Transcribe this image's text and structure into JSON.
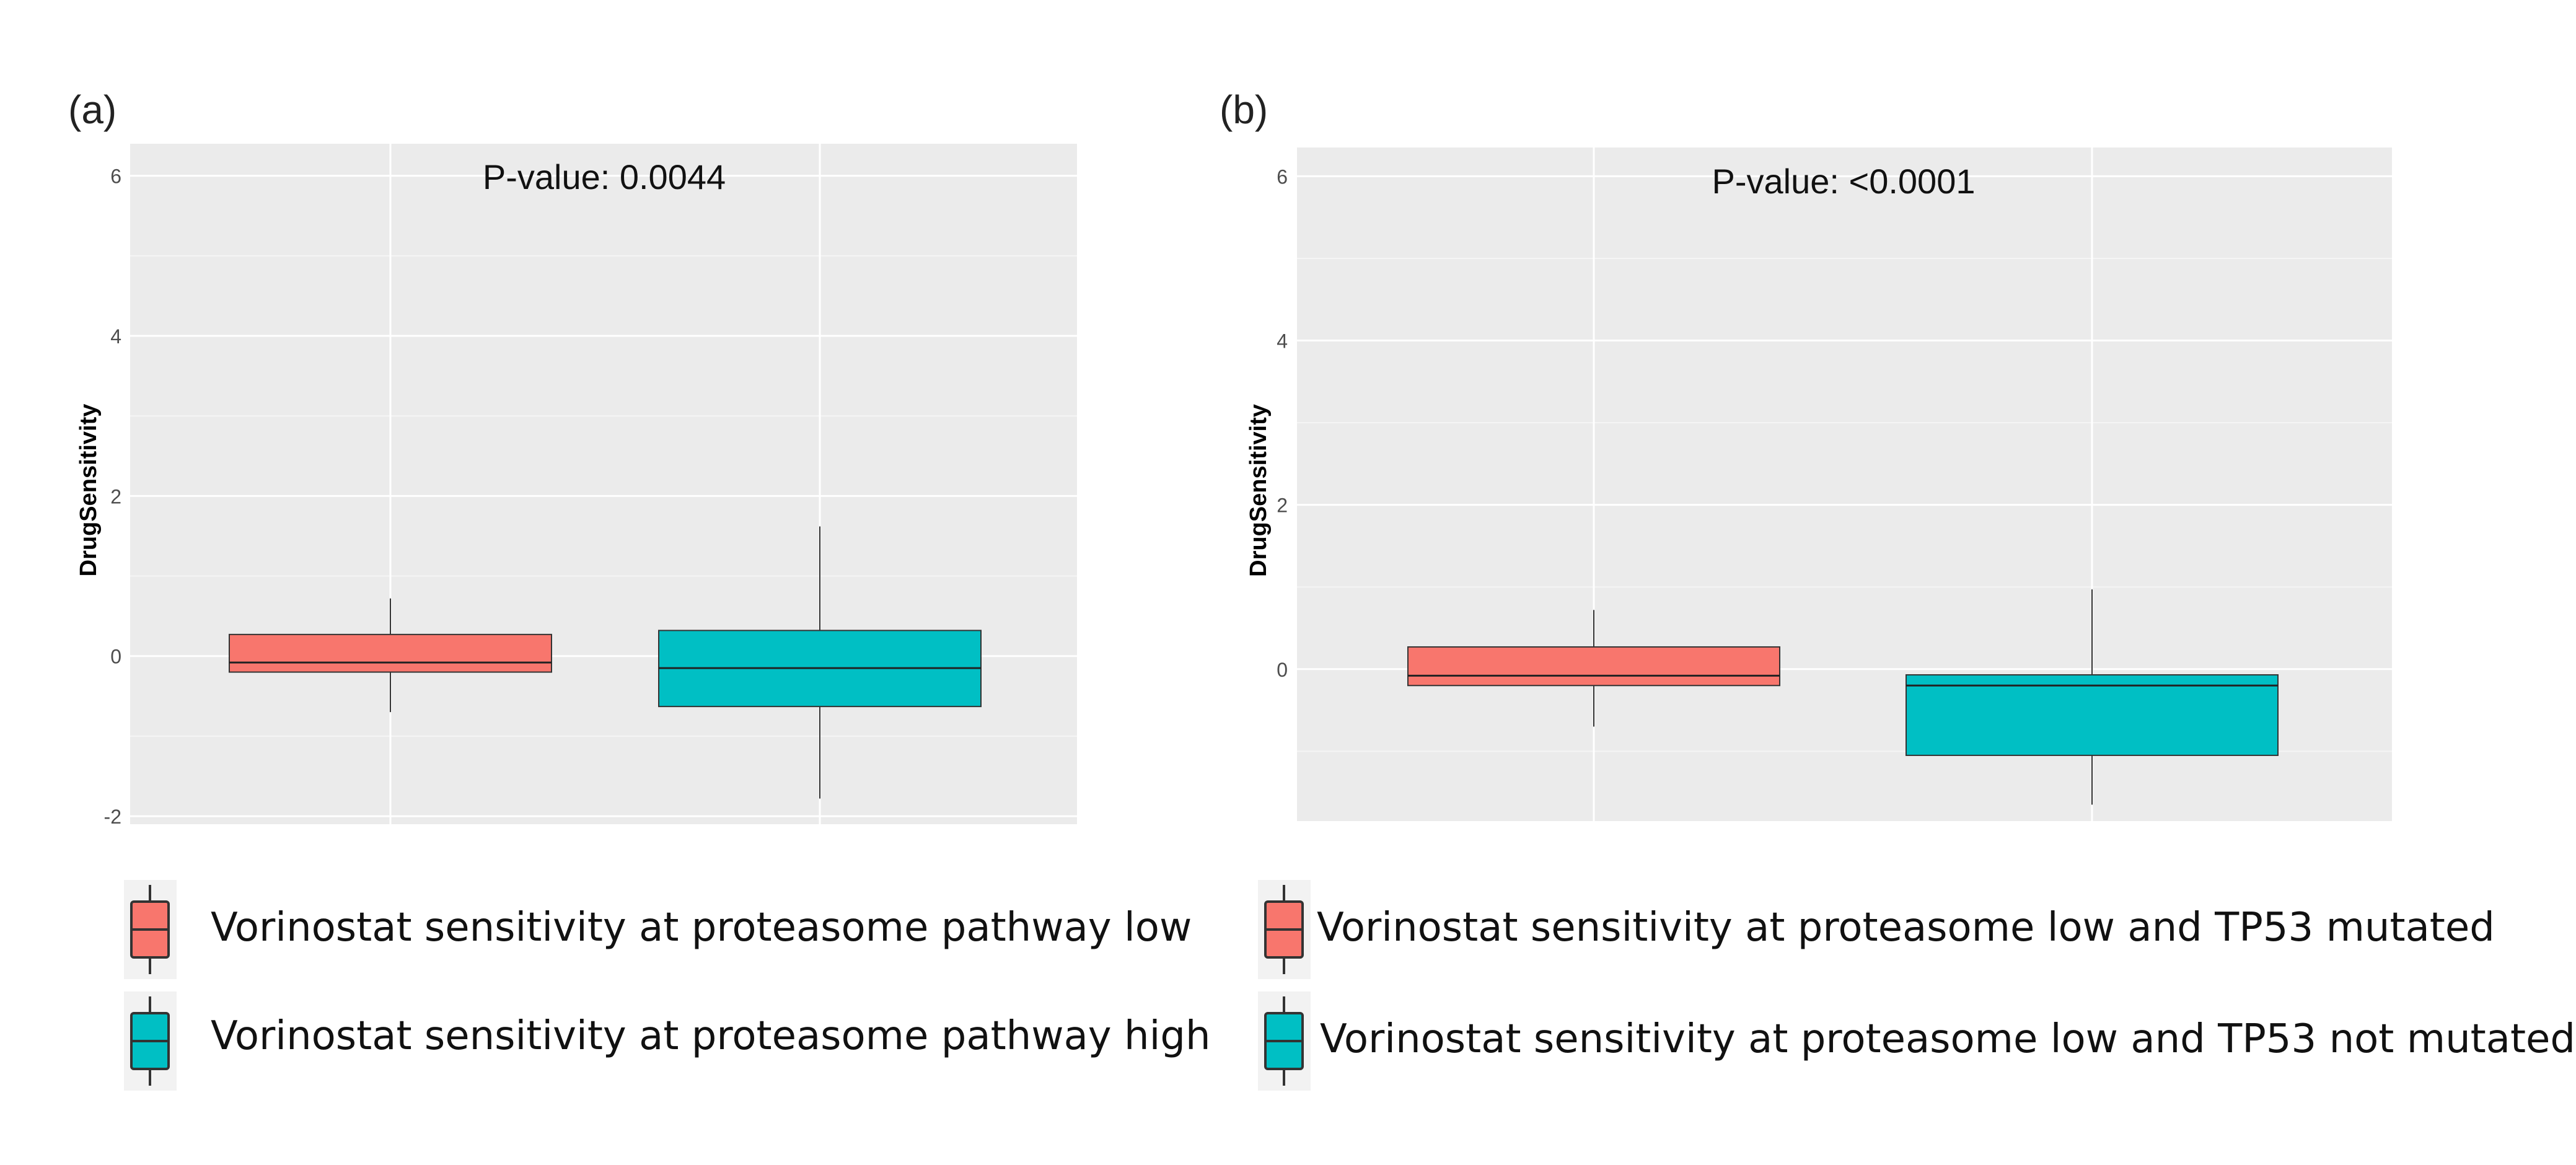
{
  "panels": {
    "a_label": "(a)",
    "b_label": "(b)"
  },
  "colors": {
    "low": "#F8766D",
    "high": "#00BFC4",
    "panel_bg": "#EBEBEB",
    "grid": "#FFFFFF"
  },
  "chart_data": [
    {
      "type": "box",
      "panel": "(a)",
      "annotation": "P-value: 0.0044",
      "ylabel": "DrugSensitivity",
      "xlabel": "",
      "ylim": [
        -2.1,
        6.4
      ],
      "yticks": [
        -2,
        0,
        2,
        4,
        6
      ],
      "ytick_labels": [
        "-2",
        "0",
        "2",
        "4",
        "6"
      ],
      "grid": true,
      "series": [
        {
          "name": "Vorinostat sensitivity at proteasome pathway low",
          "whisker_low": -0.7,
          "q1": -0.2,
          "median": -0.08,
          "q3": 0.27,
          "whisker_high": 0.72,
          "color": "#F8766D"
        },
        {
          "name": "Vorinostat sensitivity at proteasome pathway high",
          "whisker_low": -1.78,
          "q1": -0.63,
          "median": -0.15,
          "q3": 0.32,
          "whisker_high": 1.62,
          "color": "#00BFC4"
        }
      ]
    },
    {
      "type": "box",
      "panel": "(b)",
      "annotation": "P-value: <0.0001",
      "ylabel": "DrugSensitivity",
      "xlabel": "",
      "ylim": [
        -1.85,
        6.35
      ],
      "yticks": [
        0,
        2,
        4,
        6
      ],
      "ytick_labels": [
        "0",
        "2",
        "4",
        "6"
      ],
      "grid": true,
      "series": [
        {
          "name": "Vorinostat sensitivity at proteasome low and TP53 mutated",
          "whisker_low": -0.7,
          "q1": -0.2,
          "median": -0.08,
          "q3": 0.27,
          "whisker_high": 0.72,
          "color": "#F8766D"
        },
        {
          "name": "Vorinostat sensitivity at proteasome low and TP53 not mutated",
          "whisker_low": -1.65,
          "q1": -1.05,
          "median": -0.2,
          "q3": -0.07,
          "whisker_high": 0.97,
          "color": "#00BFC4"
        }
      ]
    }
  ]
}
